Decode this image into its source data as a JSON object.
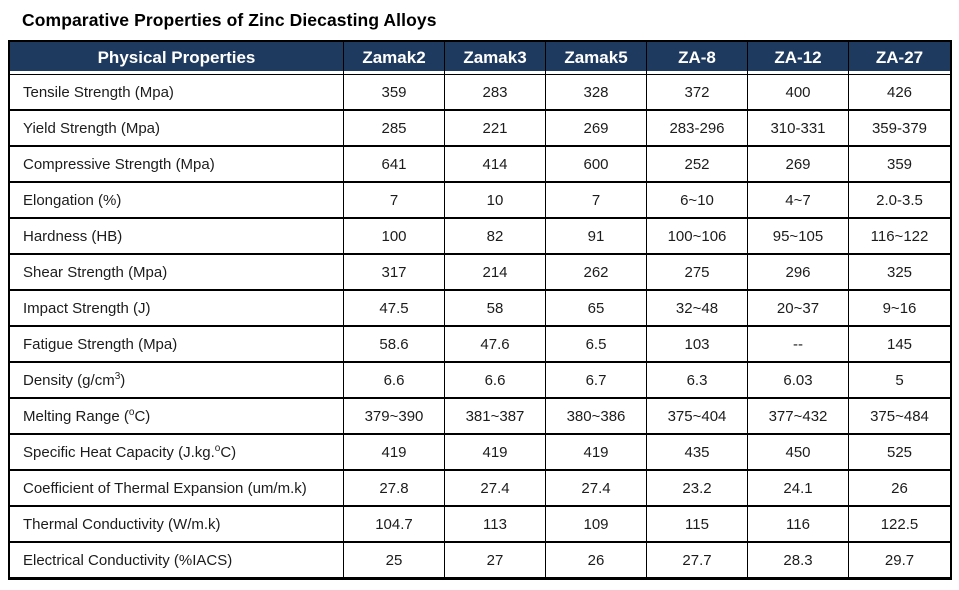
{
  "page": {
    "title": "Comparative Properties of Zinc Diecasting Alloys"
  },
  "colors": {
    "header_bg": "#1F3A5F",
    "header_text": "#FFFFFF",
    "border": "#000000",
    "body_text": "#1C1C1C"
  },
  "table": {
    "columns": [
      "Physical Properties",
      "Zamak2",
      "Zamak3",
      "Zamak5",
      "ZA-8",
      "ZA-12",
      "ZA-27"
    ],
    "rows": [
      {
        "label_pre": "Tensile Strength (Mpa)",
        "label_sup": "",
        "label_post": "",
        "values": [
          "359",
          "283",
          "328",
          "372",
          "400",
          "426"
        ]
      },
      {
        "label_pre": "Yield Strength (Mpa)",
        "label_sup": "",
        "label_post": "",
        "values": [
          "285",
          "221",
          "269",
          "283-296",
          "310-331",
          "359-379"
        ]
      },
      {
        "label_pre": "Compressive Strength (Mpa)",
        "label_sup": "",
        "label_post": "",
        "values": [
          "641",
          "414",
          "600",
          "252",
          "269",
          "359"
        ]
      },
      {
        "label_pre": "Elongation (%)",
        "label_sup": "",
        "label_post": "",
        "values": [
          "7",
          "10",
          "7",
          "6~10",
          "4~7",
          "2.0-3.5"
        ]
      },
      {
        "label_pre": "Hardness (HB)",
        "label_sup": "",
        "label_post": "",
        "values": [
          "100",
          "82",
          "91",
          "100~106",
          "95~105",
          "116~122"
        ]
      },
      {
        "label_pre": "Shear Strength (Mpa)",
        "label_sup": "",
        "label_post": "",
        "values": [
          "317",
          "214",
          "262",
          "275",
          "296",
          "325"
        ]
      },
      {
        "label_pre": "Impact Strength (J)",
        "label_sup": "",
        "label_post": "",
        "values": [
          "47.5",
          "58",
          "65",
          "32~48",
          "20~37",
          "9~16"
        ]
      },
      {
        "label_pre": "Fatigue Strength (Mpa)",
        "label_sup": "",
        "label_post": "",
        "values": [
          "58.6",
          "47.6",
          "6.5",
          "103",
          "--",
          "145"
        ]
      },
      {
        "label_pre": "Density (g/cm",
        "label_sup": "3",
        "label_post": ")",
        "values": [
          "6.6",
          "6.6",
          "6.7",
          "6.3",
          "6.03",
          "5"
        ]
      },
      {
        "label_pre": "Melting Range (",
        "label_sup": "o",
        "label_post": "C)",
        "values": [
          "379~390",
          "381~387",
          "380~386",
          "375~404",
          "377~432",
          "375~484"
        ]
      },
      {
        "label_pre": "Specific Heat Capacity (J.kg.",
        "label_sup": "o",
        "label_post": "C)",
        "values": [
          "419",
          "419",
          "419",
          "435",
          "450",
          "525"
        ]
      },
      {
        "label_pre": "Coefficient of Thermal Expansion (um/m.k)",
        "label_sup": "",
        "label_post": "",
        "values": [
          "27.8",
          "27.4",
          "27.4",
          "23.2",
          "24.1",
          "26"
        ]
      },
      {
        "label_pre": "Thermal Conductivity (W/m.k)",
        "label_sup": "",
        "label_post": "",
        "values": [
          "104.7",
          "113",
          "109",
          "115",
          "116",
          "122.5"
        ]
      },
      {
        "label_pre": "Electrical Conductivity (%IACS)",
        "label_sup": "",
        "label_post": "",
        "values": [
          "25",
          "27",
          "26",
          "27.7",
          "28.3",
          "29.7"
        ]
      }
    ]
  }
}
